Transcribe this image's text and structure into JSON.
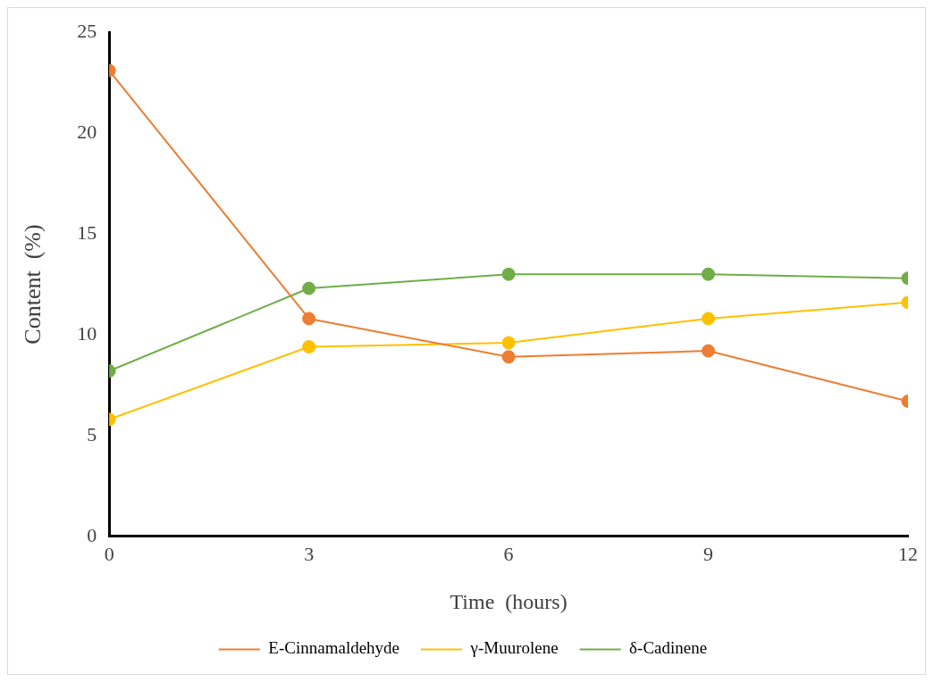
{
  "chart_data": {
    "type": "line",
    "xlabel": "Time  (hours)",
    "ylabel": "Content  (%)",
    "x": [
      0,
      3,
      6,
      9,
      12
    ],
    "xlim": [
      0,
      12
    ],
    "xticks": [
      0,
      3,
      6,
      9,
      12
    ],
    "ylim": [
      0,
      25
    ],
    "yticks": [
      0,
      5,
      10,
      15,
      20,
      25
    ],
    "grid": false,
    "legend": "bottom",
    "marker": "circle",
    "series": [
      {
        "name": "E-Cinnamaldehyde",
        "color": "#ed7d31",
        "values": [
          23.1,
          10.8,
          8.9,
          9.2,
          6.7
        ]
      },
      {
        "name": "γ-Muurolene",
        "color": "#ffc000",
        "values": [
          5.8,
          9.4,
          9.6,
          10.8,
          11.6
        ]
      },
      {
        "name": "δ-Cadinene",
        "color": "#70ad47",
        "values": [
          8.2,
          12.3,
          13.0,
          13.0,
          12.8
        ]
      }
    ]
  }
}
